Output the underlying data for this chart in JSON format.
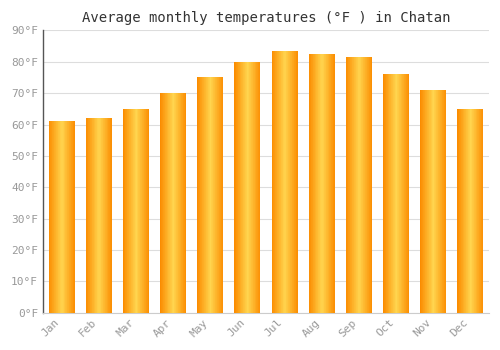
{
  "title": "Average monthly temperatures (°F ) in Chatan",
  "months": [
    "Jan",
    "Feb",
    "Mar",
    "Apr",
    "May",
    "Jun",
    "Jul",
    "Aug",
    "Sep",
    "Oct",
    "Nov",
    "Dec"
  ],
  "values": [
    61,
    62,
    65,
    70,
    75,
    80,
    83.5,
    82.5,
    81.5,
    76,
    71,
    65
  ],
  "bar_color_main": "#FFA726",
  "bar_color_light": "#FFD54F",
  "bar_color_dark": "#FB8C00",
  "ylim": [
    0,
    90
  ],
  "ytick_step": 10,
  "background_color": "#ffffff",
  "grid_color": "#dddddd",
  "title_fontsize": 10,
  "tick_fontsize": 8,
  "tick_color": "#999999",
  "title_color": "#333333",
  "font_family": "monospace",
  "bar_width": 0.7
}
